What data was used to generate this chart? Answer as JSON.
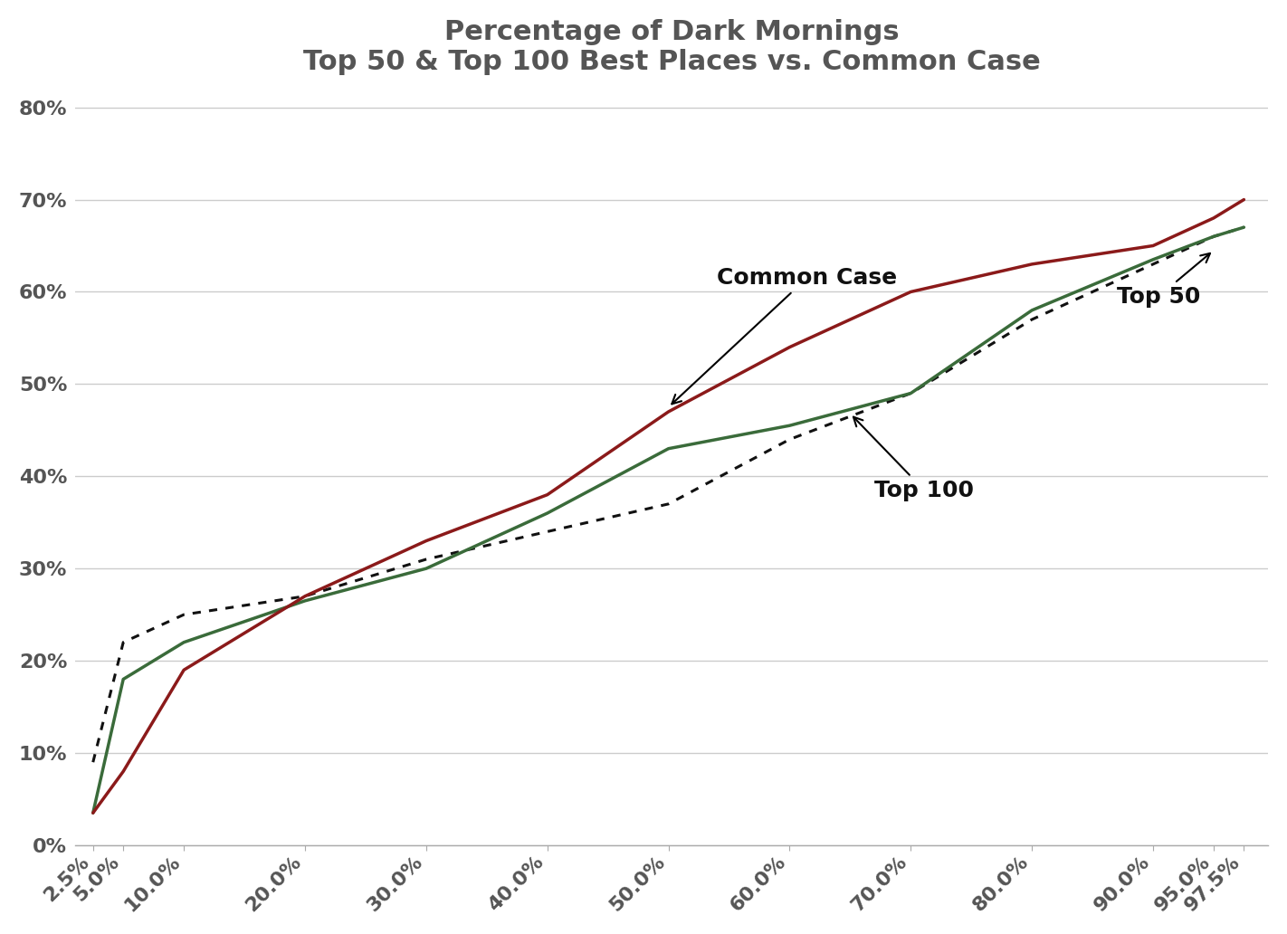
{
  "title_line1": "Percentage of Dark Mornings",
  "title_line2": "Top 50 & Top 100 Best Places vs. Common Case",
  "x_labels": [
    "2.5%",
    "5.0%",
    "10.0%",
    "20.0%",
    "30.0%",
    "40.0%",
    "50.0%",
    "60.0%",
    "70.0%",
    "80.0%",
    "90.0%",
    "95.0%",
    "97.5%"
  ],
  "x_values": [
    2.5,
    5.0,
    10.0,
    20.0,
    30.0,
    40.0,
    50.0,
    60.0,
    70.0,
    80.0,
    90.0,
    95.0,
    97.5
  ],
  "common_case": [
    0.035,
    0.08,
    0.19,
    0.27,
    0.33,
    0.38,
    0.47,
    0.54,
    0.6,
    0.63,
    0.65,
    0.68,
    0.7
  ],
  "top_50": [
    0.09,
    0.22,
    0.25,
    0.27,
    0.31,
    0.34,
    0.37,
    0.44,
    0.49,
    0.57,
    0.63,
    0.66,
    0.67
  ],
  "top_100": [
    0.035,
    0.18,
    0.22,
    0.265,
    0.3,
    0.36,
    0.43,
    0.455,
    0.49,
    0.58,
    0.635,
    0.66,
    0.67
  ],
  "color_common": "#8B1A1A",
  "color_top50": "#111111",
  "color_top100": "#3A6B3A",
  "ylim": [
    0.0,
    0.82
  ],
  "yticks": [
    0.0,
    0.1,
    0.2,
    0.3,
    0.4,
    0.5,
    0.6,
    0.7,
    0.8
  ],
  "background_color": "#ffffff",
  "grid_color": "#cccccc",
  "title_fontsize": 22,
  "tick_fontsize": 16,
  "annotation_fontsize": 18
}
